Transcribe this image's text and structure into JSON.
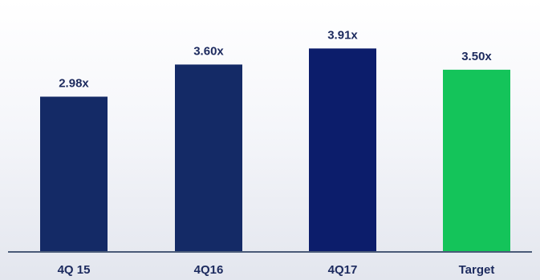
{
  "chart_data": {
    "type": "bar",
    "categories": [
      "4Q 15",
      "4Q16",
      "4Q17",
      "Target"
    ],
    "values": [
      2.98,
      3.6,
      3.91,
      3.5
    ],
    "data_labels": [
      "2.98x",
      "3.60x",
      "3.91x",
      "3.50x"
    ],
    "title": "",
    "xlabel": "",
    "ylabel": "",
    "ylim": [
      0,
      4.3
    ],
    "grid": false,
    "legend": "none",
    "colors": {
      "bars": [
        "#142a66",
        "#142a66",
        "#0c1d6b",
        "#14c45a"
      ],
      "axis": "#4a5a78",
      "label_text": "#1c2a5e"
    }
  }
}
